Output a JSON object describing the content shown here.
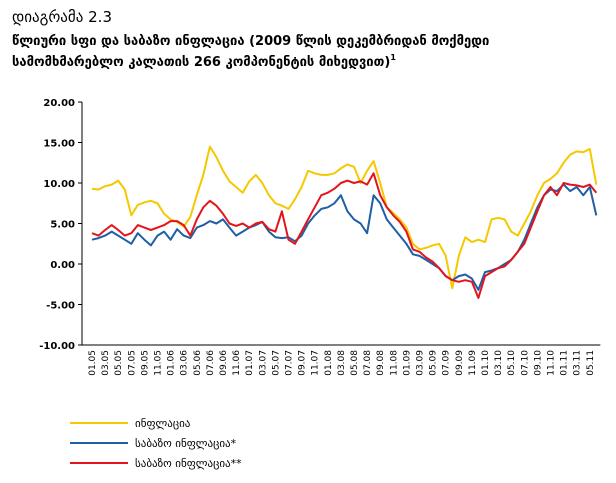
{
  "chart_data": {
    "type": "line",
    "title": "დიაგრამა 2.3",
    "subtitle_lines": [
      "წლიური სფი და საბაზო ინფლაცია (2009 წლის დეკემბრიდან მოქმედი",
      "სამომხმარებლო კალათის 266 კომპონენტის მიხედვით)"
    ],
    "subtitle_note": "1",
    "categories": [
      "01.05",
      null,
      "03.05",
      null,
      "05.05",
      null,
      "07.05",
      null,
      "09.05",
      null,
      "11.05",
      null,
      "01.06",
      null,
      "03.06",
      null,
      "05.06",
      null,
      "07.06",
      null,
      "09.06",
      null,
      "11.06",
      null,
      "01.07",
      null,
      "03.07",
      null,
      "05.07",
      null,
      "07.07",
      null,
      "09.07",
      null,
      "11.07",
      null,
      "01.08",
      null,
      "03.08",
      null,
      "05.08",
      null,
      "07.08",
      null,
      "09.08",
      null,
      "11.08",
      null,
      "01.09",
      null,
      "03.09",
      null,
      "05.09",
      null,
      "07.09",
      null,
      "09.09",
      null,
      "11.09",
      null,
      "01.10",
      null,
      "03.10",
      null,
      "05.10",
      null,
      "07.10",
      null,
      "09.10",
      null,
      "11.10",
      null,
      "01.11",
      null,
      "03.11",
      null,
      "05.11",
      null
    ],
    "series": [
      {
        "name": "ინფლაცია",
        "color": "#f5c800",
        "values": [
          9.3,
          9.2,
          9.6,
          9.8,
          10.3,
          9.2,
          6.0,
          7.3,
          7.6,
          7.8,
          7.5,
          6.2,
          5.5,
          5.2,
          4.6,
          5.8,
          8.5,
          11.0,
          14.5,
          13.2,
          11.5,
          10.2,
          9.5,
          8.8,
          10.2,
          11.0,
          10.0,
          8.5,
          7.5,
          7.2,
          6.8,
          8.0,
          9.5,
          11.5,
          11.2,
          11.0,
          11.0,
          11.2,
          11.8,
          12.3,
          12.0,
          10.0,
          11.5,
          12.7,
          10.0,
          7.0,
          6.3,
          5.5,
          4.5,
          2.5,
          1.8,
          2.0,
          2.3,
          2.5,
          1.0,
          -3.0,
          1.0,
          3.3,
          2.7,
          3.0,
          2.7,
          5.5,
          5.7,
          5.5,
          4.0,
          3.5,
          5.0,
          6.5,
          8.5,
          10.0,
          10.5,
          11.2,
          12.5,
          13.5,
          13.9,
          13.8,
          14.2,
          9.8
        ]
      },
      {
        "name": "საბაზო ინფლაცია*",
        "color": "#1f5fa6",
        "values": [
          3.0,
          3.2,
          3.5,
          4.0,
          3.5,
          3.0,
          2.5,
          3.8,
          3.0,
          2.3,
          3.5,
          4.0,
          3.0,
          4.3,
          3.5,
          3.2,
          4.5,
          4.8,
          5.3,
          5.0,
          5.5,
          4.5,
          3.5,
          4.0,
          4.5,
          4.8,
          5.2,
          4.0,
          3.3,
          3.2,
          3.3,
          2.8,
          3.5,
          5.0,
          6.0,
          6.8,
          7.0,
          7.5,
          8.5,
          6.5,
          5.5,
          5.0,
          3.8,
          8.5,
          7.5,
          5.5,
          4.5,
          3.5,
          2.5,
          1.2,
          1.0,
          0.5,
          0.0,
          -0.5,
          -1.5,
          -2.0,
          -1.5,
          -1.3,
          -1.8,
          -3.2,
          -1.0,
          -0.8,
          -0.5,
          0.0,
          0.5,
          1.5,
          3.0,
          5.0,
          7.0,
          8.5,
          9.2,
          9.0,
          9.8,
          9.0,
          9.5,
          8.5,
          9.5,
          6.0
        ]
      },
      {
        "name": "საბაზო ინფლაცია**",
        "color": "#e3141c",
        "values": [
          3.8,
          3.5,
          4.2,
          4.8,
          4.2,
          3.5,
          3.8,
          4.8,
          4.5,
          4.2,
          4.5,
          4.8,
          5.3,
          5.3,
          4.8,
          3.5,
          5.5,
          7.0,
          7.8,
          7.2,
          6.2,
          5.0,
          4.7,
          5.0,
          4.5,
          5.0,
          5.2,
          4.3,
          4.0,
          6.5,
          3.0,
          2.5,
          4.0,
          5.5,
          7.0,
          8.5,
          8.8,
          9.3,
          10.0,
          10.3,
          10.0,
          10.2,
          9.8,
          11.2,
          8.5,
          7.0,
          6.0,
          5.2,
          4.0,
          1.8,
          1.5,
          0.8,
          0.3,
          -0.5,
          -1.5,
          -2.0,
          -2.2,
          -2.0,
          -2.2,
          -4.2,
          -1.5,
          -1.0,
          -0.5,
          -0.3,
          0.5,
          1.5,
          2.5,
          4.5,
          6.5,
          8.5,
          9.5,
          8.5,
          10.0,
          9.8,
          9.7,
          9.5,
          9.8,
          8.8
        ]
      }
    ],
    "ylim": [
      -10,
      20
    ],
    "yticks": [
      {
        "value": 20,
        "label": "20.00"
      },
      {
        "value": 15,
        "label": "15.00"
      },
      {
        "value": 10,
        "label": "10.00"
      },
      {
        "value": 5,
        "label": "5.00"
      },
      {
        "value": 0,
        "label": "0.00"
      },
      {
        "value": -5,
        "label": "-5.00"
      },
      {
        "value": -10,
        "label": "-10.00"
      }
    ],
    "grid": false,
    "legend": "bottom-left"
  }
}
